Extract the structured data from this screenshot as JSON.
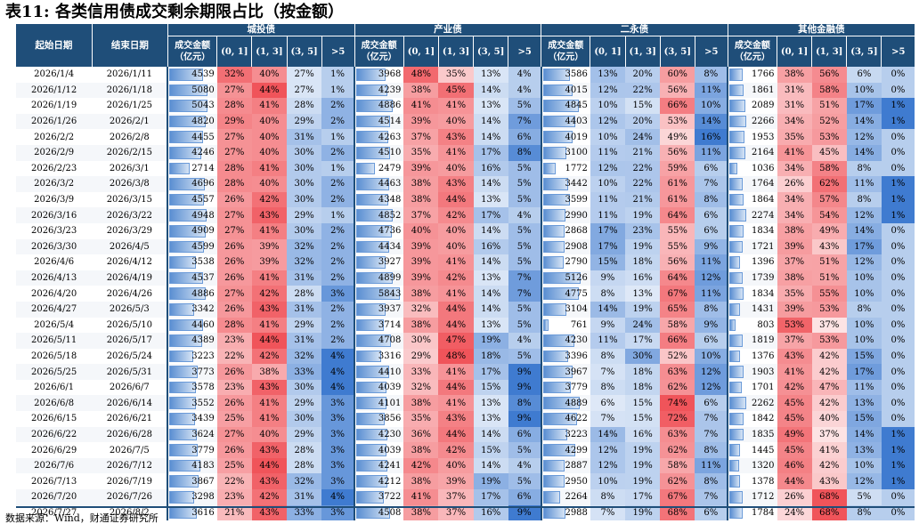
{
  "title": "表11: 各类信用债成交剩余期限占比（按金额）",
  "source": "数据来源：Wind，财通证券研究所",
  "groups": [
    "城投债",
    "产业债",
    "二永债",
    "其他金融债"
  ],
  "col_headers": {
    "start": "起始日期",
    "end": "结束日期",
    "amount": "成交金额（亿元）",
    "b1": "(0, 1]",
    "b2": "(1, 3]",
    "b3": "(3, 5]",
    "b4": ">5"
  },
  "colors": {
    "header_bg": "#1f4e79",
    "bar": "#5b8fd2",
    "red": "#f0545a",
    "blue": "#3f7bd0"
  },
  "rows": [
    {
      "s": "2026/1/4",
      "e": "2026/1/11",
      "g": [
        [
          4539,
          "32%",
          "40%",
          "27%",
          "1%"
        ],
        [
          3968,
          "48%",
          "35%",
          "13%",
          "4%"
        ],
        [
          3586,
          "13%",
          "20%",
          "60%",
          "8%"
        ],
        [
          1766,
          "38%",
          "56%",
          "6%",
          "0%"
        ]
      ]
    },
    {
      "s": "2026/1/12",
      "e": "2026/1/18",
      "g": [
        [
          5080,
          "27%",
          "44%",
          "27%",
          "1%"
        ],
        [
          4239,
          "38%",
          "45%",
          "14%",
          "4%"
        ],
        [
          4015,
          "12%",
          "22%",
          "56%",
          "11%"
        ],
        [
          1861,
          "31%",
          "58%",
          "10%",
          "0%"
        ]
      ]
    },
    {
      "s": "2026/1/19",
      "e": "2026/1/25",
      "g": [
        [
          5043,
          "28%",
          "41%",
          "28%",
          "2%"
        ],
        [
          4886,
          "41%",
          "41%",
          "13%",
          "5%"
        ],
        [
          4845,
          "10%",
          "15%",
          "66%",
          "10%"
        ],
        [
          2089,
          "31%",
          "51%",
          "17%",
          "1%"
        ]
      ]
    },
    {
      "s": "2026/1/26",
      "e": "2026/2/1",
      "g": [
        [
          4820,
          "29%",
          "40%",
          "29%",
          "2%"
        ],
        [
          4514,
          "39%",
          "40%",
          "14%",
          "7%"
        ],
        [
          4403,
          "12%",
          "20%",
          "53%",
          "14%"
        ],
        [
          2266,
          "34%",
          "52%",
          "14%",
          "1%"
        ]
      ]
    },
    {
      "s": "2026/2/2",
      "e": "2026/2/8",
      "g": [
        [
          4455,
          "27%",
          "40%",
          "31%",
          "1%"
        ],
        [
          4263,
          "37%",
          "43%",
          "14%",
          "6%"
        ],
        [
          4019,
          "10%",
          "24%",
          "49%",
          "16%"
        ],
        [
          1953,
          "35%",
          "53%",
          "12%",
          "0%"
        ]
      ]
    },
    {
      "s": "2026/2/9",
      "e": "2026/2/15",
      "g": [
        [
          4246,
          "27%",
          "40%",
          "30%",
          "2%"
        ],
        [
          4510,
          "35%",
          "41%",
          "17%",
          "8%"
        ],
        [
          3100,
          "11%",
          "21%",
          "56%",
          "11%"
        ],
        [
          2164,
          "41%",
          "45%",
          "14%",
          "0%"
        ]
      ]
    },
    {
      "s": "2026/2/23",
      "e": "2026/3/1",
      "g": [
        [
          2714,
          "28%",
          "41%",
          "30%",
          "1%"
        ],
        [
          2479,
          "39%",
          "40%",
          "16%",
          "5%"
        ],
        [
          1772,
          "12%",
          "22%",
          "59%",
          "6%"
        ],
        [
          1036,
          "34%",
          "58%",
          "8%",
          "0%"
        ]
      ]
    },
    {
      "s": "2026/3/2",
      "e": "2026/3/8",
      "g": [
        [
          4696,
          "28%",
          "40%",
          "30%",
          "2%"
        ],
        [
          4463,
          "38%",
          "43%",
          "14%",
          "5%"
        ],
        [
          3442,
          "10%",
          "22%",
          "61%",
          "7%"
        ],
        [
          1764,
          "26%",
          "62%",
          "11%",
          "1%"
        ]
      ]
    },
    {
      "s": "2026/3/9",
      "e": "2026/3/15",
      "g": [
        [
          4557,
          "26%",
          "42%",
          "30%",
          "2%"
        ],
        [
          4348,
          "38%",
          "44%",
          "13%",
          "5%"
        ],
        [
          3599,
          "11%",
          "21%",
          "61%",
          "8%"
        ],
        [
          1864,
          "34%",
          "57%",
          "8%",
          "1%"
        ]
      ]
    },
    {
      "s": "2026/3/16",
      "e": "2026/3/22",
      "g": [
        [
          4948,
          "27%",
          "43%",
          "29%",
          "1%"
        ],
        [
          4852,
          "37%",
          "42%",
          "17%",
          "4%"
        ],
        [
          2990,
          "11%",
          "19%",
          "64%",
          "6%"
        ],
        [
          2274,
          "34%",
          "54%",
          "12%",
          "1%"
        ]
      ]
    },
    {
      "s": "2026/3/23",
      "e": "2026/3/29",
      "g": [
        [
          4909,
          "27%",
          "41%",
          "30%",
          "2%"
        ],
        [
          4736,
          "40%",
          "40%",
          "14%",
          "5%"
        ],
        [
          2868,
          "17%",
          "23%",
          "55%",
          "6%"
        ],
        [
          1834,
          "38%",
          "49%",
          "14%",
          "0%"
        ]
      ]
    },
    {
      "s": "2026/3/30",
      "e": "2026/4/5",
      "g": [
        [
          4599,
          "26%",
          "39%",
          "32%",
          "2%"
        ],
        [
          4434,
          "39%",
          "40%",
          "16%",
          "5%"
        ],
        [
          2908,
          "17%",
          "19%",
          "55%",
          "9%"
        ],
        [
          1721,
          "39%",
          "43%",
          "17%",
          "0%"
        ]
      ]
    },
    {
      "s": "2026/4/6",
      "e": "2026/4/12",
      "g": [
        [
          3538,
          "26%",
          "39%",
          "32%",
          "2%"
        ],
        [
          3927,
          "39%",
          "41%",
          "14%",
          "5%"
        ],
        [
          2790,
          "15%",
          "18%",
          "56%",
          "11%"
        ],
        [
          1396,
          "37%",
          "51%",
          "12%",
          "0%"
        ]
      ]
    },
    {
      "s": "2026/4/13",
      "e": "2026/4/19",
      "g": [
        [
          4537,
          "26%",
          "41%",
          "31%",
          "2%"
        ],
        [
          4899,
          "39%",
          "42%",
          "13%",
          "7%"
        ],
        [
          5126,
          "9%",
          "16%",
          "64%",
          "12%"
        ],
        [
          1739,
          "38%",
          "51%",
          "10%",
          "0%"
        ]
      ]
    },
    {
      "s": "2026/4/20",
      "e": "2026/4/26",
      "g": [
        [
          4886,
          "27%",
          "42%",
          "28%",
          "3%"
        ],
        [
          5843,
          "38%",
          "41%",
          "14%",
          "7%"
        ],
        [
          4775,
          "8%",
          "13%",
          "67%",
          "11%"
        ],
        [
          1834,
          "35%",
          "55%",
          "10%",
          "0%"
        ]
      ]
    },
    {
      "s": "2026/4/27",
      "e": "2026/5/3",
      "g": [
        [
          3342,
          "26%",
          "43%",
          "31%",
          "2%"
        ],
        [
          3937,
          "32%",
          "44%",
          "14%",
          "5%"
        ],
        [
          3104,
          "14%",
          "19%",
          "65%",
          "8%"
        ],
        [
          1431,
          "39%",
          "53%",
          "8%",
          "0%"
        ]
      ]
    },
    {
      "s": "2026/5/4",
      "e": "2026/5/10",
      "g": [
        [
          4460,
          "28%",
          "41%",
          "29%",
          "2%"
        ],
        [
          3714,
          "38%",
          "44%",
          "13%",
          "5%"
        ],
        [
          761,
          "9%",
          "24%",
          "58%",
          "9%"
        ],
        [
          803,
          "53%",
          "37%",
          "10%",
          "0%"
        ]
      ]
    },
    {
      "s": "2026/5/11",
      "e": "2026/5/17",
      "g": [
        [
          4389,
          "23%",
          "44%",
          "31%",
          "2%"
        ],
        [
          4708,
          "30%",
          "47%",
          "19%",
          "4%"
        ],
        [
          4230,
          "11%",
          "17%",
          "66%",
          "6%"
        ],
        [
          1819,
          "37%",
          "53%",
          "10%",
          "0%"
        ]
      ]
    },
    {
      "s": "2026/5/18",
      "e": "2026/5/24",
      "g": [
        [
          3223,
          "22%",
          "42%",
          "32%",
          "4%"
        ],
        [
          3316,
          "29%",
          "48%",
          "18%",
          "5%"
        ],
        [
          3396,
          "8%",
          "30%",
          "52%",
          "10%"
        ],
        [
          1376,
          "43%",
          "42%",
          "15%",
          "0%"
        ]
      ]
    },
    {
      "s": "2026/5/25",
      "e": "2026/5/31",
      "g": [
        [
          3773,
          "26%",
          "38%",
          "33%",
          "4%"
        ],
        [
          4410,
          "33%",
          "41%",
          "17%",
          "9%"
        ],
        [
          3967,
          "7%",
          "18%",
          "63%",
          "12%"
        ],
        [
          1903,
          "41%",
          "42%",
          "17%",
          "0%"
        ]
      ]
    },
    {
      "s": "2026/6/1",
      "e": "2026/6/7",
      "g": [
        [
          3578,
          "23%",
          "43%",
          "30%",
          "4%"
        ],
        [
          4039,
          "32%",
          "44%",
          "15%",
          "9%"
        ],
        [
          3779,
          "8%",
          "18%",
          "62%",
          "12%"
        ],
        [
          1701,
          "42%",
          "47%",
          "11%",
          "0%"
        ]
      ]
    },
    {
      "s": "2026/6/8",
      "e": "2026/6/14",
      "g": [
        [
          3552,
          "26%",
          "41%",
          "29%",
          "3%"
        ],
        [
          4101,
          "38%",
          "41%",
          "13%",
          "8%"
        ],
        [
          4889,
          "6%",
          "15%",
          "74%",
          "6%"
        ],
        [
          2262,
          "45%",
          "42%",
          "13%",
          "0%"
        ]
      ]
    },
    {
      "s": "2026/6/15",
      "e": "2026/6/21",
      "g": [
        [
          3439,
          "25%",
          "41%",
          "30%",
          "3%"
        ],
        [
          3856,
          "35%",
          "43%",
          "13%",
          "9%"
        ],
        [
          4622,
          "7%",
          "15%",
          "72%",
          "7%"
        ],
        [
          1842,
          "45%",
          "40%",
          "15%",
          "0%"
        ]
      ]
    },
    {
      "s": "2026/6/22",
      "e": "2026/6/28",
      "g": [
        [
          3624,
          "27%",
          "40%",
          "29%",
          "3%"
        ],
        [
          4230,
          "36%",
          "44%",
          "14%",
          "6%"
        ],
        [
          3223,
          "14%",
          "16%",
          "63%",
          "7%"
        ],
        [
          1835,
          "49%",
          "37%",
          "14%",
          "1%"
        ]
      ]
    },
    {
      "s": "2026/6/29",
      "e": "2026/7/5",
      "g": [
        [
          3779,
          "26%",
          "43%",
          "28%",
          "3%"
        ],
        [
          4039,
          "38%",
          "42%",
          "15%",
          "5%"
        ],
        [
          4299,
          "12%",
          "19%",
          "62%",
          "8%"
        ],
        [
          1445,
          "45%",
          "41%",
          "13%",
          "1%"
        ]
      ]
    },
    {
      "s": "2026/7/6",
      "e": "2026/7/12",
      "g": [
        [
          4183,
          "25%",
          "44%",
          "28%",
          "3%"
        ],
        [
          4241,
          "42%",
          "40%",
          "14%",
          "4%"
        ],
        [
          2887,
          "12%",
          "19%",
          "58%",
          "11%"
        ],
        [
          1320,
          "46%",
          "42%",
          "10%",
          "1%"
        ]
      ]
    },
    {
      "s": "2026/7/13",
      "e": "2026/7/19",
      "g": [
        [
          3867,
          "22%",
          "43%",
          "32%",
          "3%"
        ],
        [
          4212,
          "38%",
          "39%",
          "19%",
          "5%"
        ],
        [
          2950,
          "10%",
          "19%",
          "62%",
          "8%"
        ],
        [
          1378,
          "44%",
          "43%",
          "12%",
          "1%"
        ]
      ]
    },
    {
      "s": "2026/7/20",
      "e": "2026/7/26",
      "g": [
        [
          3298,
          "23%",
          "42%",
          "31%",
          "4%"
        ],
        [
          3722,
          "41%",
          "37%",
          "17%",
          "6%"
        ],
        [
          2264,
          "8%",
          "17%",
          "67%",
          "7%"
        ],
        [
          1712,
          "26%",
          "68%",
          "5%",
          "0%"
        ]
      ]
    },
    {
      "s": "2026/7/27",
      "e": "2026/8/2",
      "g": [
        [
          3616,
          "21%",
          "43%",
          "33%",
          "3%"
        ],
        [
          4508,
          "38%",
          "37%",
          "16%",
          "9%"
        ],
        [
          2988,
          "7%",
          "19%",
          "68%",
          "6%"
        ],
        [
          1784,
          "24%",
          "68%",
          "8%",
          "0%"
        ]
      ]
    }
  ]
}
